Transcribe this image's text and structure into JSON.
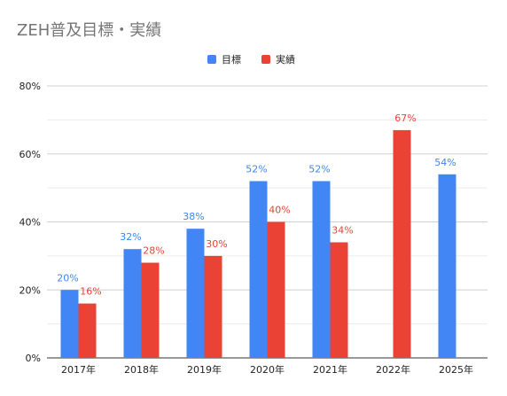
{
  "chart_data": {
    "type": "bar",
    "title": "ZEH普及目標・実績",
    "categories": [
      "2017年",
      "2018年",
      "2019年",
      "2020年",
      "2021年",
      "2022年",
      "2025年"
    ],
    "series": [
      {
        "name": "目標",
        "color": "#4285f4",
        "values": [
          20,
          32,
          38,
          52,
          52,
          null,
          54
        ],
        "labels": [
          "20%",
          "32%",
          "38%",
          "52%",
          "52%",
          "",
          "54%"
        ]
      },
      {
        "name": "実績",
        "color": "#ea4335",
        "values": [
          16,
          28,
          30,
          40,
          34,
          67,
          null
        ],
        "labels": [
          "16%",
          "28%",
          "30%",
          "40%",
          "34%",
          "67%",
          ""
        ]
      }
    ],
    "ylim": [
      0,
      80
    ],
    "yticks": [
      0,
      20,
      40,
      60,
      80
    ],
    "ytick_labels": [
      "0%",
      "20%",
      "40%",
      "60%",
      "80%"
    ],
    "grid": true,
    "legend_position": "top-center"
  }
}
